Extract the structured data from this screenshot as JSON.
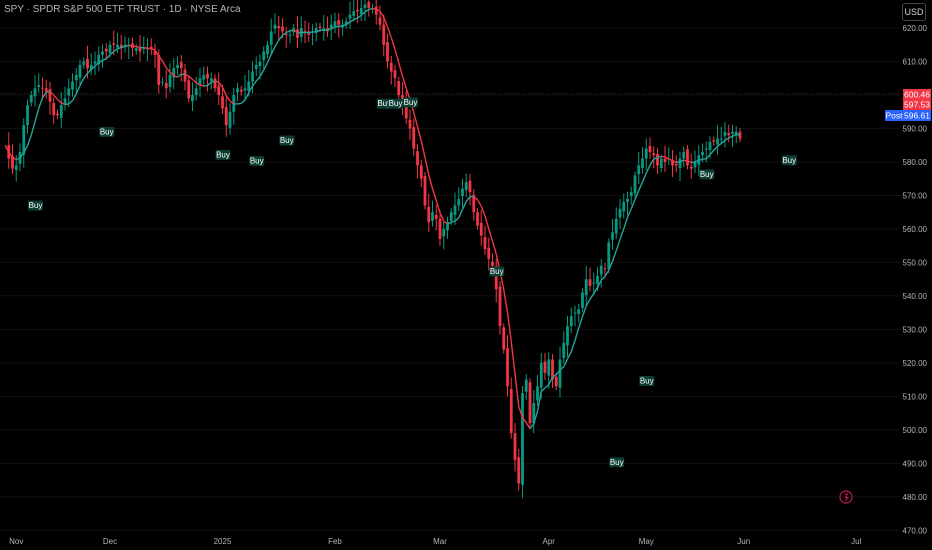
{
  "header": {
    "title": "SPY · SPDR S&P 500 ETF TRUST · 1D · NYSE Arca",
    "currency": "USD"
  },
  "price_labels": [
    {
      "value": 600.46,
      "text": "600.46",
      "color": "#f23645"
    },
    {
      "value": 597.53,
      "text": "597.53",
      "color": "#f23645"
    },
    {
      "value": 596.61,
      "text": "596.61",
      "color": "#2962ff",
      "prefix": "Post"
    }
  ],
  "colors": {
    "up": "#089981",
    "down": "#f23645",
    "ma_up": "#26a69a",
    "ma_down": "#f23645",
    "buy_label_bg": "#0b3d33",
    "background": "#000000"
  },
  "chart_data": {
    "type": "candlestick",
    "title": "SPY · SPDR S&P 500 ETF TRUST · 1D · NYSE Arca",
    "ylim": [
      468,
      623
    ],
    "yticks": [
      470,
      480,
      490,
      500,
      510,
      520,
      530,
      540,
      550,
      560,
      570,
      580,
      590,
      600,
      610,
      620
    ],
    "x_labels": [
      "Nov",
      "Dec",
      "2025",
      "Feb",
      "Mar",
      "Apr",
      "May",
      "Jun",
      "Jul"
    ],
    "x_label_index": [
      3,
      28,
      58,
      88,
      116,
      145,
      171,
      197,
      227
    ],
    "start_close": 585,
    "daily_close_change": [
      -4,
      -3,
      1,
      4,
      8,
      6,
      3,
      2,
      1,
      -1,
      -1,
      -3,
      -4,
      0,
      3,
      2,
      3,
      2,
      2,
      3,
      1,
      -2,
      1,
      1,
      2,
      1,
      0,
      2,
      0,
      0,
      -1,
      1,
      0,
      -1,
      0,
      -1,
      1,
      0,
      0,
      -2,
      -9,
      1,
      -2,
      4,
      2,
      1,
      -1,
      -4,
      -5,
      1,
      2,
      3,
      1,
      -1,
      0,
      -3,
      -2,
      -4,
      -5,
      4,
      5,
      2,
      -1,
      1,
      2,
      3,
      2,
      1,
      3,
      2,
      4,
      2,
      -1,
      -1,
      -1,
      0,
      2,
      -3,
      3,
      -1,
      -1,
      1,
      1,
      0,
      0,
      -1,
      2,
      1,
      -1,
      0,
      1,
      2,
      1,
      0,
      1,
      1,
      -1,
      0,
      -2,
      -3,
      -6,
      -5,
      -3,
      -2,
      -5,
      -3,
      -4,
      -3,
      -6,
      -5,
      -4,
      -8,
      -5,
      3,
      -2,
      -6,
      3,
      2,
      3,
      2,
      2,
      3,
      2,
      -3,
      -6,
      -4,
      -3,
      -4,
      -3,
      -2,
      -7,
      -11,
      -7,
      -11,
      -14,
      -8,
      -7,
      27,
      4,
      -13,
      6,
      5,
      7,
      -3,
      4,
      -6,
      -2,
      8,
      5,
      5,
      3,
      1,
      1,
      5,
      4,
      -2,
      1,
      2,
      3,
      -1,
      8,
      3,
      4,
      3,
      2,
      1,
      2,
      5,
      3,
      2,
      3,
      -1,
      -1,
      -3,
      2,
      -1,
      1,
      -2,
      0,
      2,
      2,
      -4,
      -1,
      2,
      2,
      1,
      1,
      2,
      0,
      1,
      0,
      2,
      -1,
      1,
      0,
      -2
    ],
    "ma_label": "",
    "buy_signals": [
      {
        "index": 8,
        "price": 568.5
      },
      {
        "index": 27,
        "price": 590.5
      },
      {
        "index": 58,
        "price": 583.6
      },
      {
        "index": 67,
        "price": 581.8
      },
      {
        "index": 75,
        "price": 587.9
      },
      {
        "index": 101,
        "price": 598.9
      },
      {
        "index": 104,
        "price": 598.9
      },
      {
        "index": 108,
        "price": 599.3
      },
      {
        "index": 131,
        "price": 548.8
      },
      {
        "index": 163,
        "price": 491.8
      },
      {
        "index": 171,
        "price": 516.1
      },
      {
        "index": 187,
        "price": 577.8
      },
      {
        "index": 209,
        "price": 582.0
      }
    ],
    "buy_label_text": "Buy"
  }
}
